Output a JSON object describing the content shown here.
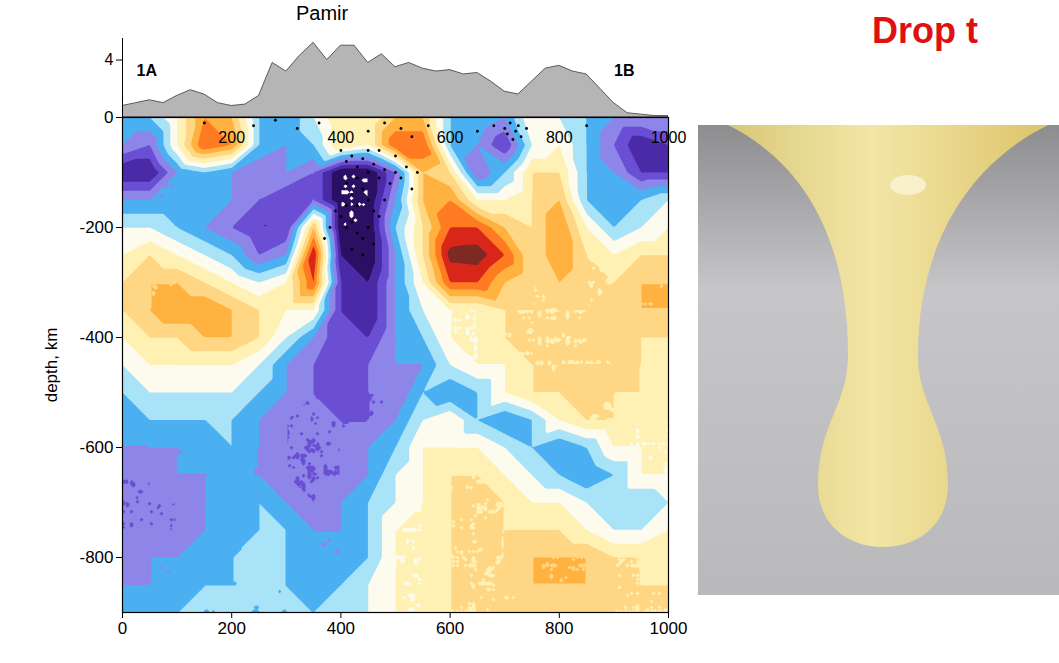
{
  "chart_data": [
    {
      "type": "area",
      "title": "Pamir",
      "annotations": [
        "1A",
        "1B"
      ],
      "x": [
        0,
        25,
        50,
        75,
        100,
        125,
        150,
        175,
        200,
        225,
        250,
        275,
        300,
        325,
        350,
        375,
        400,
        425,
        450,
        475,
        500,
        525,
        550,
        575,
        600,
        625,
        650,
        675,
        700,
        725,
        750,
        775,
        800,
        825,
        850,
        875,
        900,
        925,
        950,
        975,
        1000
      ],
      "values": [
        0.8,
        1.0,
        1.2,
        1.0,
        1.5,
        1.9,
        1.6,
        1.0,
        0.8,
        0.9,
        1.5,
        3.8,
        3.2,
        4.3,
        5.2,
        4.0,
        5.0,
        5.0,
        3.8,
        4.4,
        3.5,
        3.8,
        3.4,
        3.2,
        3.3,
        3.0,
        3.1,
        2.5,
        1.8,
        1.6,
        2.5,
        3.4,
        3.6,
        3.2,
        3.0,
        2.0,
        1.0,
        0.3,
        0.2,
        0.1,
        0.1
      ],
      "color": "#b5b5b5",
      "xlim": [
        0,
        1000
      ],
      "ylim": [
        0,
        5.5
      ],
      "yticks": [
        4
      ],
      "tick_labels": "y"
    },
    {
      "type": "contour",
      "y_label": "depth, km",
      "xlim": [
        0,
        1000
      ],
      "ylim": [
        -900,
        0
      ],
      "xticks": [
        0,
        200,
        400,
        600,
        800,
        1000
      ],
      "x_top_ticks": [
        200,
        400,
        600,
        800,
        1000
      ],
      "yticks": [
        0,
        -200,
        -400,
        -600,
        -800
      ],
      "levels": [
        -3,
        -2.5,
        -2,
        -1.5,
        -1,
        -0.5,
        0,
        0.5,
        1,
        1.5,
        2,
        2.5,
        3
      ],
      "level_colors": [
        "#2b0f63",
        "#4a2aa6",
        "#6a4fd4",
        "#8d86e8",
        "#4ab0f2",
        "#a9e3f7",
        "#fdfbee",
        "#fff0b3",
        "#ffd683",
        "#ffb240",
        "#ff7b22",
        "#d9261a",
        "#7e2a24"
      ],
      "cells": {
        "x": [
          0,
          50,
          100,
          150,
          200,
          250,
          300,
          350,
          400,
          450,
          500,
          550,
          600,
          650,
          700,
          750,
          800,
          850,
          900,
          950,
          1000
        ],
        "depth": [
          0,
          -50,
          -100,
          -150,
          -200,
          -250,
          -300,
          -350,
          -400,
          -450,
          -500,
          -550,
          -600,
          -650,
          -700,
          -750,
          -800,
          -850,
          -900
        ],
        "values": [
          [
            -0.5,
            -0.5,
            0.5,
            2,
            1.5,
            -0.5,
            -1,
            0,
            1,
            0.5,
            1.5,
            1.5,
            -0.5,
            -0.5,
            -1,
            0.5,
            0,
            -0.5,
            -1,
            -1,
            -1
          ],
          [
            -1,
            -1.5,
            0.5,
            2.5,
            2,
            -0.5,
            -1,
            -0.5,
            1,
            0.5,
            2.5,
            2.5,
            -0.5,
            -1,
            -2,
            0,
            0.5,
            -0.5,
            -1.5,
            -2.5,
            -2
          ],
          [
            -2.5,
            -2.5,
            -1,
            -0.5,
            -1,
            -1.5,
            -1,
            -1.5,
            -3,
            -3,
            -1.5,
            1.5,
            1,
            -1.5,
            -0.5,
            1,
            1,
            -0.5,
            -1,
            -2,
            -2
          ],
          [
            -1,
            -1,
            -1,
            -0.5,
            -1,
            -1.5,
            -2,
            -1.5,
            -3,
            -3,
            -1,
            1.5,
            2,
            0.5,
            0.5,
            1,
            1.5,
            -0.5,
            -1,
            -0.5,
            0
          ],
          [
            0,
            0,
            -0.5,
            -1,
            -1.5,
            -2,
            -2,
            1.5,
            -3,
            -3,
            -0.5,
            1,
            2.5,
            2.5,
            1.5,
            1,
            2,
            0.5,
            -0.5,
            0,
            0.5
          ],
          [
            0.5,
            1,
            0.5,
            0,
            -0.5,
            -1.5,
            -1,
            3,
            -2.5,
            -3,
            -1,
            1,
            3.2,
            3.3,
            2.5,
            1,
            2,
            1,
            0.5,
            1,
            1
          ],
          [
            1,
            1.5,
            1.5,
            1,
            0.5,
            0,
            0.5,
            2.5,
            -2,
            -2.5,
            -1,
            0.5,
            2.5,
            2.5,
            1.5,
            1,
            1.5,
            1,
            1,
            1.5,
            1.5
          ],
          [
            1,
            1.5,
            2,
            2,
            1.5,
            1,
            0.5,
            0.5,
            -2,
            -2.5,
            -1,
            0,
            0.5,
            0.5,
            1,
            1,
            1,
            1,
            1.5,
            1.5,
            1.5
          ],
          [
            0.5,
            1,
            1,
            1.5,
            1.5,
            1,
            0,
            -1,
            -2,
            -2,
            -1,
            -0.5,
            0.5,
            0.5,
            1,
            1,
            1,
            1,
            1.5,
            1,
            1
          ],
          [
            0,
            0.5,
            0.5,
            0.5,
            0.5,
            0,
            -1,
            -1.5,
            -2,
            -1.5,
            -1,
            -1,
            0,
            0.5,
            0.5,
            1,
            1,
            1,
            1,
            1,
            0.5
          ],
          [
            -0.5,
            0,
            0,
            0,
            0,
            -0.5,
            -1,
            -1.5,
            -2,
            -1.5,
            -1.5,
            -0.5,
            -1,
            -0.5,
            0.5,
            1,
            1,
            1.5,
            1,
            1,
            0.5
          ],
          [
            -1,
            -0.5,
            -0.5,
            -0.5,
            -0.5,
            -1,
            -1.5,
            -1.5,
            -1.5,
            -1.5,
            -1,
            0,
            0.5,
            -0.5,
            -1,
            -0.5,
            0.5,
            1,
            1,
            0.5,
            0.5
          ],
          [
            -1,
            -1,
            -1,
            -1,
            -0.5,
            -1,
            -1.5,
            -1.5,
            -1.5,
            -1,
            -0.5,
            0.5,
            0.5,
            0.5,
            0,
            -0.5,
            -1,
            -0.5,
            0.5,
            0.5,
            0.5
          ],
          [
            -1.5,
            -1.5,
            -1,
            -1,
            -1,
            -1,
            -1.5,
            -1.5,
            -1.5,
            -1,
            0,
            0.5,
            1,
            1,
            0.5,
            0,
            -0.5,
            -1,
            -0.5,
            0.5,
            0.5
          ],
          [
            -1.5,
            -1.5,
            -1.5,
            -1,
            -1,
            -0.5,
            -1,
            -1.5,
            -1,
            -0.5,
            0,
            0.5,
            1,
            1,
            1,
            0.5,
            0.5,
            0,
            -0.5,
            -0.5,
            0
          ],
          [
            -1.5,
            -1.5,
            -1.5,
            -1,
            -1,
            -0.5,
            -0.5,
            -1,
            -1,
            -0.5,
            0.5,
            0.5,
            1,
            1,
            1,
            1,
            1,
            0.5,
            0,
            0,
            0.5
          ],
          [
            -1.5,
            -1,
            -1,
            -1,
            -0.5,
            -0.5,
            -0.5,
            -1,
            -1,
            -0.5,
            0.5,
            0.5,
            1,
            1,
            1,
            1.5,
            1.5,
            1.5,
            1,
            1,
            0.5
          ],
          [
            -1,
            -1,
            -1,
            -0.5,
            -0.5,
            -0.5,
            -0.5,
            -1,
            -0.5,
            0,
            0.5,
            0.5,
            1,
            1,
            1,
            1.5,
            1.5,
            1.5,
            1,
            1,
            1
          ],
          [
            -1,
            -0.5,
            -0.5,
            -0.5,
            -0.5,
            -0.5,
            -0.5,
            -0.5,
            0,
            0,
            0.5,
            0.5,
            1,
            1,
            1,
            1,
            1,
            1.5,
            1,
            1,
            1
          ]
        ]
      },
      "earthquakes": {
        "x": [
          150,
          240,
          280,
          320,
          360,
          450,
          480,
          510,
          530,
          560,
          650,
          680,
          700,
          705,
          710,
          715,
          720,
          725,
          730,
          740,
          850,
          400,
          410,
          420,
          430,
          440,
          450,
          460,
          470,
          480,
          490,
          500,
          510,
          520,
          530,
          540,
          410,
          420,
          430,
          440,
          450,
          460,
          400,
          410,
          420,
          430,
          440,
          450,
          460,
          420,
          440,
          390,
          380,
          370,
          410,
          470,
          480,
          430,
          450,
          470,
          500
        ],
        "depth": [
          -10,
          -15,
          -5,
          -20,
          -10,
          -25,
          -10,
          -20,
          -35,
          -15,
          -25,
          -15,
          -20,
          -30,
          -10,
          -40,
          -25,
          -15,
          -35,
          -20,
          -15,
          -60,
          -80,
          -70,
          -90,
          -75,
          -100,
          -85,
          -110,
          -95,
          -120,
          -100,
          -110,
          -90,
          -130,
          -100,
          -120,
          -140,
          -160,
          -130,
          -150,
          -170,
          -180,
          -200,
          -190,
          -210,
          -220,
          -200,
          -230,
          -240,
          -250,
          -170,
          -200,
          -220,
          -160,
          -180,
          -150,
          -110,
          -60,
          -60,
          -70
        ],
        "color": "#000000"
      }
    }
  ],
  "photo": {
    "title": "Drop t"
  }
}
